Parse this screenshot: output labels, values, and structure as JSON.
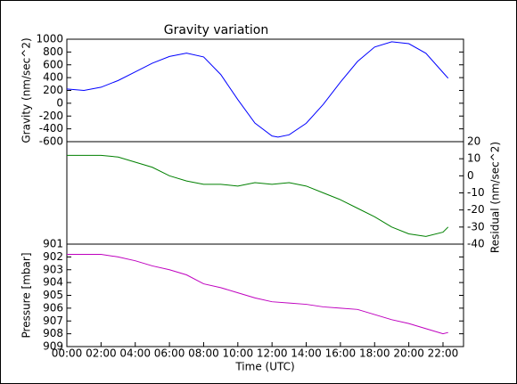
{
  "chart_data": [
    {
      "type": "line",
      "title": "Gravity variation",
      "ylabel": "Gravity (nm/sec^2)",
      "x": [
        0,
        1,
        2,
        3,
        4,
        5,
        6,
        7,
        8,
        9,
        10,
        11,
        12,
        12.35,
        13,
        14,
        15,
        16,
        17,
        18,
        19,
        20,
        21,
        22,
        22.3
      ],
      "series": [
        {
          "name": "Gravity",
          "color": "#0000ff",
          "values": [
            222,
            200,
            250,
            355,
            490,
            625,
            730,
            782,
            723,
            449,
            57,
            -310,
            -512,
            -528,
            -493,
            -313,
            -17,
            330,
            652,
            878,
            960,
            930,
            780,
            480,
            390
          ]
        }
      ],
      "xlim": [
        0,
        23.2
      ],
      "ylim": [
        -600,
        1000
      ],
      "yticks": [
        -600,
        -400,
        -200,
        0,
        200,
        400,
        600,
        800,
        1000
      ]
    },
    {
      "type": "line",
      "y2label": "Residual (nm/sec^2)",
      "x": [
        0,
        1,
        2,
        3,
        4,
        5,
        6,
        7,
        8,
        9,
        10,
        11,
        12,
        13,
        14,
        15,
        16,
        17,
        18,
        19,
        20,
        21,
        22,
        22.3
      ],
      "series": [
        {
          "name": "Residual",
          "color": "#008000",
          "axis": "y2",
          "values": [
            12,
            12,
            12,
            11,
            8,
            5,
            0,
            -3,
            -5,
            -5,
            -6,
            -4,
            -5,
            -4,
            -6,
            -10,
            -14,
            -19,
            -24,
            -30,
            -34,
            -35.5,
            -33,
            -30
          ]
        }
      ],
      "xlim": [
        0,
        23.2
      ],
      "y2lim": [
        -40,
        20
      ],
      "y2ticks": [
        -40,
        -30,
        -20,
        -10,
        0,
        10,
        20
      ]
    },
    {
      "type": "line",
      "ylabel": "Pressure [mbar]",
      "xlabel": "Time (UTC)",
      "x": [
        0,
        1,
        2,
        3,
        4,
        5,
        6,
        7,
        8,
        9,
        10,
        11,
        12,
        13,
        14,
        15,
        16,
        17,
        18,
        19,
        20,
        21,
        22,
        22.3
      ],
      "series": [
        {
          "name": "Pressure",
          "color": "#bf00bf",
          "values": [
            901.8,
            901.8,
            901.8,
            902.0,
            902.3,
            902.7,
            903.0,
            903.4,
            904.1,
            904.4,
            904.8,
            905.2,
            905.5,
            905.6,
            905.7,
            905.9,
            906.0,
            906.1,
            906.5,
            906.9,
            907.2,
            907.6,
            908.0,
            907.9
          ]
        }
      ],
      "xlim": [
        0,
        23.2
      ],
      "ylim": [
        909,
        901
      ],
      "yticks": [
        901,
        902,
        903,
        904,
        905,
        906,
        907,
        908,
        909
      ],
      "xticks": [
        {
          "value": 0,
          "label": "00:00"
        },
        {
          "value": 2,
          "label": "02:00"
        },
        {
          "value": 4,
          "label": "04:00"
        },
        {
          "value": 6,
          "label": "06:00"
        },
        {
          "value": 8,
          "label": "08:00"
        },
        {
          "value": 10,
          "label": "10:00"
        },
        {
          "value": 12,
          "label": "12:00"
        },
        {
          "value": 14,
          "label": "14:00"
        },
        {
          "value": 16,
          "label": "16:00"
        },
        {
          "value": 18,
          "label": "18:00"
        },
        {
          "value": 20,
          "label": "20:00"
        },
        {
          "value": 22,
          "label": "22:00"
        }
      ]
    }
  ]
}
